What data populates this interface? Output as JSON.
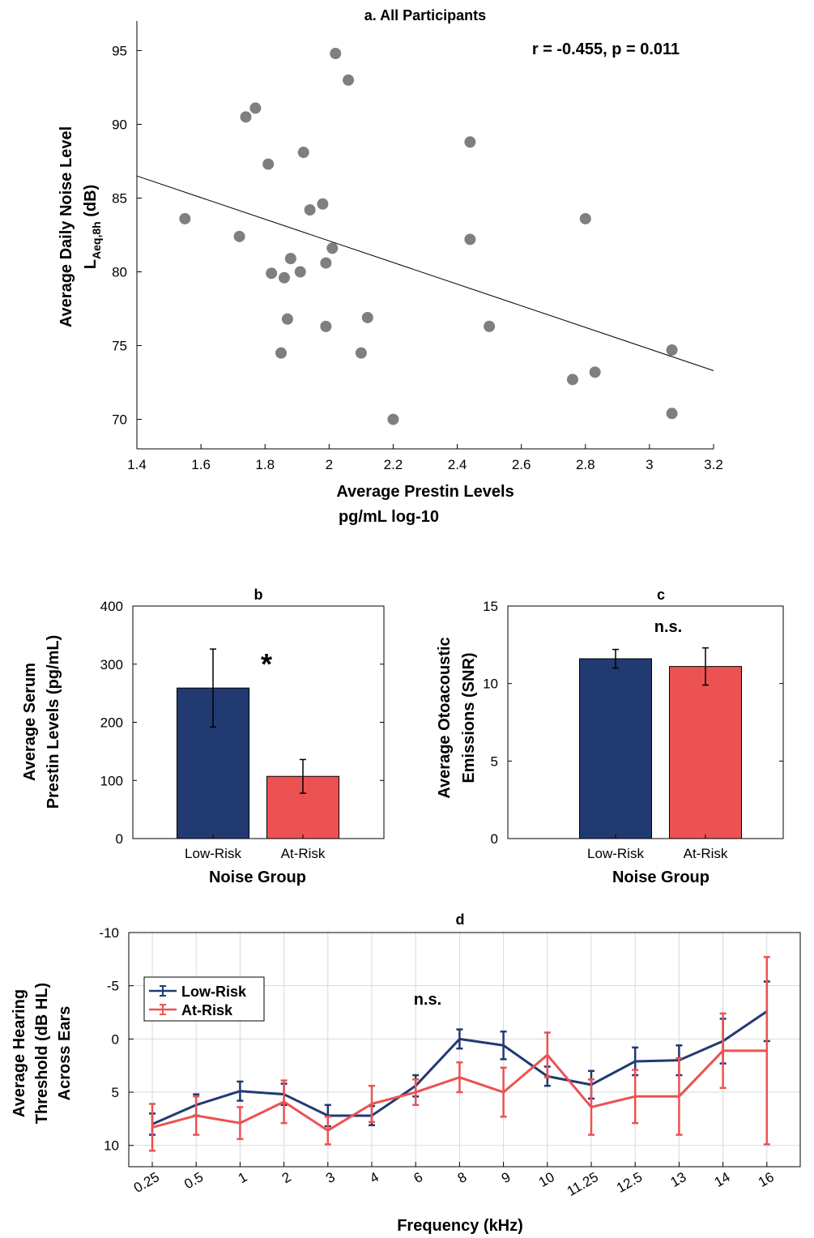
{
  "chart_data": [
    {
      "id": "a",
      "type": "scatter",
      "title": "a. All Participants",
      "xlabel": "Average Prestin Levels",
      "xlabel_line2": "pg/mL log-10",
      "ylabel": "Average Daily Noise Level",
      "ylabel_line2_main": "L",
      "ylabel_line2_sub": "Aeq,8h",
      "ylabel_line2_tail": " (dB)",
      "annotation": "r = -0.455, p = 0.011",
      "xlim": [
        1.4,
        3.2
      ],
      "ylim": [
        68,
        97
      ],
      "xticks": [
        1.4,
        1.6,
        1.8,
        2,
        2.2,
        2.4,
        2.6,
        2.8,
        3,
        3.2
      ],
      "xtick_labels": [
        "1.4",
        "1.6",
        "1.8",
        "2",
        "2.2",
        "2.4",
        "2.6",
        "2.8",
        "3",
        "3.2"
      ],
      "yticks": [
        70,
        75,
        80,
        85,
        90,
        95
      ],
      "ytick_labels": [
        "70",
        "75",
        "80",
        "85",
        "90",
        "95"
      ],
      "marker_color": "#7f7f7f",
      "fit_line": {
        "x": [
          1.4,
          3.2
        ],
        "y": [
          86.5,
          73.3
        ]
      },
      "points": [
        {
          "x": 1.55,
          "y": 83.6
        },
        {
          "x": 1.72,
          "y": 82.4
        },
        {
          "x": 1.74,
          "y": 90.5
        },
        {
          "x": 1.77,
          "y": 91.1
        },
        {
          "x": 1.81,
          "y": 87.3
        },
        {
          "x": 1.82,
          "y": 79.9
        },
        {
          "x": 1.85,
          "y": 74.5
        },
        {
          "x": 1.86,
          "y": 79.6
        },
        {
          "x": 1.87,
          "y": 76.8
        },
        {
          "x": 1.88,
          "y": 80.9
        },
        {
          "x": 1.91,
          "y": 80.0
        },
        {
          "x": 1.92,
          "y": 88.1
        },
        {
          "x": 1.94,
          "y": 84.2
        },
        {
          "x": 1.98,
          "y": 84.6
        },
        {
          "x": 1.99,
          "y": 80.6
        },
        {
          "x": 1.99,
          "y": 76.3
        },
        {
          "x": 2.01,
          "y": 81.6
        },
        {
          "x": 2.02,
          "y": 94.8
        },
        {
          "x": 2.06,
          "y": 93.0
        },
        {
          "x": 2.1,
          "y": 74.5
        },
        {
          "x": 2.12,
          "y": 76.9
        },
        {
          "x": 2.2,
          "y": 70.0
        },
        {
          "x": 2.44,
          "y": 88.8
        },
        {
          "x": 2.44,
          "y": 82.2
        },
        {
          "x": 2.5,
          "y": 76.3
        },
        {
          "x": 2.76,
          "y": 72.7
        },
        {
          "x": 2.8,
          "y": 83.6
        },
        {
          "x": 2.83,
          "y": 73.2
        },
        {
          "x": 3.07,
          "y": 74.7
        },
        {
          "x": 3.07,
          "y": 70.4
        }
      ]
    },
    {
      "id": "b",
      "type": "bar",
      "title": "b",
      "xlabel": "Noise Group",
      "ylabel": "Average Serum",
      "ylabel_line2": "Prestin Levels (pg/mL)",
      "annotation": "*",
      "categories": [
        "Low-Risk",
        "At-Risk"
      ],
      "values": [
        259,
        107
      ],
      "errors": [
        67,
        29
      ],
      "colors": [
        "#213a72",
        "#ec5252"
      ],
      "ylim": [
        0,
        400
      ],
      "yticks": [
        0,
        100,
        200,
        300,
        400
      ],
      "ytick_labels": [
        "0",
        "100",
        "200",
        "300",
        "400"
      ]
    },
    {
      "id": "c",
      "type": "bar",
      "title": "c",
      "xlabel": "Noise Group",
      "ylabel": "Average Otoacoustic",
      "ylabel_line2": "Emissions (SNR)",
      "annotation": "n.s.",
      "categories": [
        "Low-Risk",
        "At-Risk"
      ],
      "values": [
        11.6,
        11.1
      ],
      "errors": [
        0.6,
        1.2
      ],
      "colors": [
        "#213a72",
        "#ec5252"
      ],
      "ylim": [
        0,
        15
      ],
      "yticks": [
        0,
        5,
        10,
        15
      ],
      "ytick_labels": [
        "0",
        "5",
        "10",
        "15"
      ]
    },
    {
      "id": "d",
      "type": "line",
      "title": "d",
      "xlabel": "Frequency (kHz)",
      "ylabel": "Average Hearing",
      "ylabel_line2": "Threshold (dB HL)",
      "ylabel_line3": "Across Ears",
      "annotation": "n.s.",
      "categories": [
        "0.25",
        "0.5",
        "1",
        "2",
        "3",
        "4",
        "6",
        "8",
        "9",
        "10",
        "11.25",
        "12.5",
        "13",
        "14",
        "16"
      ],
      "ylim": [
        -10,
        12
      ],
      "y_reversed": true,
      "grid": true,
      "legend_position": "top-left",
      "yticks": [
        -10,
        -5,
        0,
        5,
        10
      ],
      "ytick_labels": [
        "-10",
        "-5",
        "0",
        "5",
        "10"
      ],
      "series": [
        {
          "name": "Low-Risk",
          "color": "#213a72",
          "values": [
            8.0,
            6.2,
            4.9,
            5.2,
            7.2,
            7.2,
            4.4,
            0.0,
            0.6,
            3.5,
            4.3,
            2.1,
            2.0,
            0.2,
            -2.6
          ],
          "errors": [
            1.0,
            1.0,
            0.9,
            1.0,
            1.0,
            0.9,
            1.0,
            0.9,
            1.3,
            0.9,
            1.3,
            1.3,
            1.4,
            2.1,
            2.8
          ]
        },
        {
          "name": "At-Risk",
          "color": "#ec5252",
          "values": [
            8.3,
            7.2,
            7.9,
            5.9,
            8.6,
            6.1,
            5.0,
            3.6,
            5.0,
            1.5,
            6.4,
            5.4,
            5.4,
            1.1,
            1.1
          ],
          "errors": [
            2.2,
            1.8,
            1.5,
            2.0,
            1.3,
            1.7,
            1.2,
            1.4,
            2.3,
            2.1,
            2.6,
            2.5,
            3.6,
            3.5,
            8.8
          ]
        }
      ]
    }
  ]
}
